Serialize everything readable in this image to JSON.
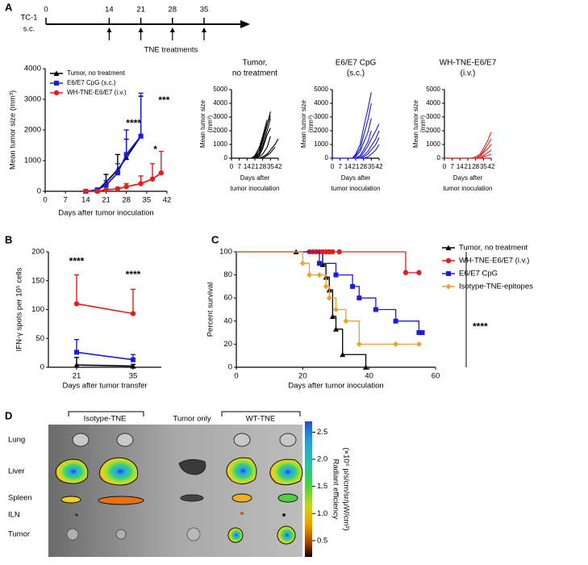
{
  "panel_labels": [
    "A",
    "B",
    "C",
    "D"
  ],
  "timeline": {
    "labels": [
      "TC-1",
      "s.c."
    ],
    "ticks": [
      0,
      14,
      21,
      28,
      35
    ],
    "treatments": [
      14,
      21,
      28,
      35
    ],
    "treatment_label": "TNE treatments"
  },
  "chart_data": [
    {
      "type": "line",
      "xlabel": "Days after tumor inoculation",
      "ylabel": "Mean tumor size (mm³)",
      "xlim": [
        0,
        42
      ],
      "xticks": [
        0,
        7,
        14,
        21,
        28,
        35,
        42
      ],
      "ylim": [
        0,
        4000
      ],
      "yticks": [
        0,
        1000,
        2000,
        3000,
        4000
      ],
      "legend": "upper left",
      "x": [
        14,
        18,
        21,
        25,
        28,
        33,
        37,
        40
      ],
      "series": [
        {
          "name": "Tumor, no treatment",
          "color": "#000000",
          "marker": "triangle",
          "values": [
            0,
            20,
            300,
            700,
            1100,
            1800,
            null,
            null
          ],
          "errors": [
            0,
            30,
            250,
            500,
            600,
            1300,
            null,
            null
          ]
        },
        {
          "name": "E6/E7 CpG (s.c.)",
          "color": "#1c1cdc",
          "marker": "square",
          "values": [
            0,
            50,
            200,
            600,
            1200,
            1800,
            null,
            null
          ],
          "errors": [
            0,
            40,
            150,
            300,
            800,
            1400,
            null,
            null
          ]
        },
        {
          "name": "WH-TNE-E6/E7 (i.v.)",
          "color": "#e0201e",
          "marker": "circle",
          "values": [
            0,
            0,
            50,
            80,
            150,
            250,
            400,
            600
          ],
          "errors": [
            0,
            0,
            30,
            50,
            100,
            250,
            500,
            700
          ]
        }
      ],
      "annotations": [
        {
          "text": "****",
          "x": 30.5,
          "y": 2200
        },
        {
          "text": "*",
          "x": 38,
          "y": 1350
        },
        {
          "text": "***",
          "x": 41,
          "y": 2950
        }
      ]
    },
    {
      "type": "line",
      "title": [
        "Tumor,",
        "no treatment"
      ],
      "xlabel": [
        "Days after",
        "tumor inoculation"
      ],
      "ylabel": [
        "Mean tumor size",
        "(mm³)"
      ],
      "xlim": [
        0,
        42
      ],
      "xticks": [
        0,
        7,
        14,
        21,
        28,
        35,
        42
      ],
      "ylim": [
        0,
        5000
      ],
      "yticks": [
        0,
        1000,
        2000,
        3000,
        4000,
        5000
      ],
      "color": "#000000",
      "x": [
        0,
        7,
        14,
        18,
        21,
        25,
        28,
        32,
        35,
        39,
        42
      ],
      "series": [
        {
          "values": [
            0,
            0,
            0,
            0,
            100,
            400,
            1200,
            2400,
            3400,
            null,
            null
          ]
        },
        {
          "values": [
            0,
            0,
            0,
            0,
            50,
            300,
            900,
            2000,
            2900,
            null,
            null
          ]
        },
        {
          "values": [
            0,
            0,
            0,
            0,
            200,
            800,
            1600,
            2800,
            null,
            null,
            null
          ]
        },
        {
          "values": [
            0,
            0,
            0,
            0,
            100,
            600,
            1400,
            2500,
            3100,
            null,
            null
          ]
        },
        {
          "values": [
            0,
            0,
            0,
            0,
            0,
            200,
            700,
            1700,
            2200,
            null,
            null
          ]
        },
        {
          "values": [
            0,
            0,
            0,
            0,
            0,
            100,
            300,
            800,
            1600,
            null,
            null
          ]
        },
        {
          "values": [
            0,
            0,
            0,
            0,
            0,
            0,
            100,
            300,
            600,
            1000,
            1400
          ]
        },
        {
          "values": [
            0,
            0,
            0,
            0,
            0,
            0,
            0,
            200,
            400,
            800,
            null
          ]
        }
      ]
    },
    {
      "type": "line",
      "title": [
        "E6/E7 CpG",
        "(s.c.)"
      ],
      "xlabel": [
        "Days after",
        "tumor inoculation"
      ],
      "ylabel": [
        "Mean tumor size",
        "(mm³)"
      ],
      "xlim": [
        0,
        42
      ],
      "xticks": [
        0,
        7,
        14,
        21,
        28,
        35,
        42
      ],
      "ylim": [
        0,
        5000
      ],
      "yticks": [
        0,
        1000,
        2000,
        3000,
        4000,
        5000
      ],
      "color": "#1c1cdc",
      "x": [
        0,
        7,
        14,
        18,
        21,
        25,
        28,
        32,
        35,
        39,
        42
      ],
      "series": [
        {
          "values": [
            0,
            0,
            0,
            0,
            300,
            1000,
            2200,
            3600,
            4800,
            null,
            null
          ]
        },
        {
          "values": [
            0,
            0,
            0,
            0,
            200,
            700,
            1600,
            2800,
            4000,
            null,
            null
          ]
        },
        {
          "values": [
            0,
            0,
            0,
            0,
            100,
            500,
            1100,
            1900,
            2900,
            null,
            null
          ]
        },
        {
          "values": [
            0,
            0,
            0,
            0,
            0,
            200,
            600,
            1200,
            2000,
            null,
            null
          ]
        },
        {
          "values": [
            0,
            0,
            0,
            0,
            0,
            100,
            400,
            900,
            1400,
            2000,
            2500
          ]
        },
        {
          "values": [
            0,
            0,
            0,
            0,
            0,
            0,
            200,
            500,
            900,
            1400,
            2000
          ]
        },
        {
          "values": [
            0,
            0,
            0,
            0,
            0,
            0,
            100,
            300,
            600,
            1000,
            1500
          ]
        },
        {
          "values": [
            0,
            0,
            0,
            0,
            0,
            0,
            0,
            100,
            300,
            600,
            1000
          ]
        }
      ]
    },
    {
      "type": "line",
      "title": [
        "WH-TNE-E6/E7",
        "(i.v.)"
      ],
      "xlabel": [
        "Days after",
        "tumor inoculation"
      ],
      "ylabel": [
        "Mean tumor size",
        "(mm³)"
      ],
      "xlim": [
        0,
        42
      ],
      "xticks": [
        0,
        7,
        14,
        21,
        28,
        35,
        42
      ],
      "ylim": [
        0,
        5000
      ],
      "yticks": [
        0,
        1000,
        2000,
        3000,
        4000,
        5000
      ],
      "color": "#e0201e",
      "x": [
        0,
        7,
        14,
        18,
        21,
        25,
        28,
        32,
        35,
        39,
        42
      ],
      "series": [
        {
          "values": [
            0,
            0,
            0,
            0,
            0,
            0,
            100,
            300,
            700,
            1300,
            1900
          ]
        },
        {
          "values": [
            0,
            0,
            0,
            0,
            0,
            0,
            0,
            200,
            500,
            1000,
            1400
          ]
        },
        {
          "values": [
            0,
            0,
            0,
            0,
            0,
            0,
            0,
            100,
            400,
            700,
            1000
          ]
        },
        {
          "values": [
            0,
            0,
            0,
            0,
            0,
            0,
            0,
            0,
            200,
            400,
            600
          ]
        },
        {
          "values": [
            0,
            0,
            0,
            0,
            0,
            0,
            0,
            0,
            100,
            200,
            300
          ]
        },
        {
          "values": [
            0,
            0,
            0,
            0,
            0,
            0,
            0,
            0,
            0,
            0,
            0
          ]
        }
      ]
    },
    {
      "type": "line",
      "xlabel": "Days after tumor transfer",
      "ylabel": "IFN-γ spots per 10⁵ cells",
      "xlim": [
        14,
        42
      ],
      "xticks": [
        21,
        35
      ],
      "ylim": [
        0,
        200
      ],
      "yticks": [
        0,
        50,
        100,
        150,
        200
      ],
      "x": [
        21,
        35
      ],
      "series": [
        {
          "name": "Tumor, no treatment",
          "color": "#000000",
          "marker": "triangle",
          "values": [
            4,
            2
          ],
          "errors": [
            13,
            3
          ]
        },
        {
          "name": "E6/E7 CpG (s.c.)",
          "color": "#1c1cdc",
          "marker": "square",
          "values": [
            26,
            13
          ],
          "errors": [
            22,
            9
          ]
        },
        {
          "name": "WH-TNE-E6/E7 (i.v.)",
          "color": "#e0201e",
          "marker": "circle",
          "values": [
            110,
            93
          ],
          "errors": [
            50,
            42
          ]
        }
      ],
      "annotations": [
        {
          "text": "****",
          "x": 21,
          "y": 183
        },
        {
          "text": "****",
          "x": 35,
          "y": 160
        }
      ]
    },
    {
      "type": "survival",
      "xlabel": "Days after tumor inoculation",
      "ylabel": "Percent survival",
      "xlim": [
        0,
        60
      ],
      "xticks": [
        0,
        20,
        40,
        60
      ],
      "ylim": [
        0,
        100
      ],
      "yticks": [
        0,
        20,
        40,
        60,
        80,
        100
      ],
      "legend": "right",
      "significance": "****",
      "series": [
        {
          "name": "Tumor, no treatment",
          "color": "#000000",
          "marker": "triangle",
          "x": [
            0,
            18,
            26,
            27,
            28,
            29,
            30,
            32,
            39
          ],
          "values": [
            100,
            100,
            89,
            78,
            67,
            44,
            33,
            11,
            0
          ]
        },
        {
          "name": "WH-TNE-E6/E7 (i.v.)",
          "color": "#e0201e",
          "marker": "circle",
          "x": [
            0,
            22,
            23,
            24,
            25,
            26,
            27,
            28,
            29,
            31,
            51,
            55
          ],
          "values": [
            100,
            100,
            100,
            100,
            100,
            100,
            100,
            100,
            100,
            100,
            82,
            82
          ]
        },
        {
          "name": "E6/E7 CpG",
          "color": "#1c1cdc",
          "marker": "square",
          "x": [
            0,
            25,
            30,
            35,
            37,
            42,
            48,
            55,
            56
          ],
          "values": [
            100,
            90,
            80,
            70,
            60,
            50,
            40,
            30,
            30
          ]
        },
        {
          "name": "Isotype-TNE-epitopes",
          "color": "#f0a030",
          "marker": "diamond",
          "x": [
            0,
            20,
            22,
            25,
            27,
            28,
            30,
            33,
            37,
            48,
            55
          ],
          "values": [
            100,
            90,
            80,
            80,
            70,
            60,
            50,
            40,
            20,
            20,
            20
          ]
        }
      ]
    }
  ],
  "panel_d": {
    "groups": [
      "Isotype-TNE",
      "Tumor only",
      "WT-TNE"
    ],
    "organs": [
      "Lung",
      "Liver",
      "Spleen",
      "ILN",
      "Tumor"
    ],
    "colorbar": {
      "lim": [
        0.2,
        2.7
      ],
      "ticks": [
        2.5,
        {
          "value": 2,
          "label": "2.0"
        },
        1.5,
        {
          "value": 1,
          "label": "1.0"
        },
        0.5
      ],
      "label": "Radiant efficiency",
      "unit": "(×10⁹ p/s/cm/sr/μW/cm²)"
    }
  }
}
